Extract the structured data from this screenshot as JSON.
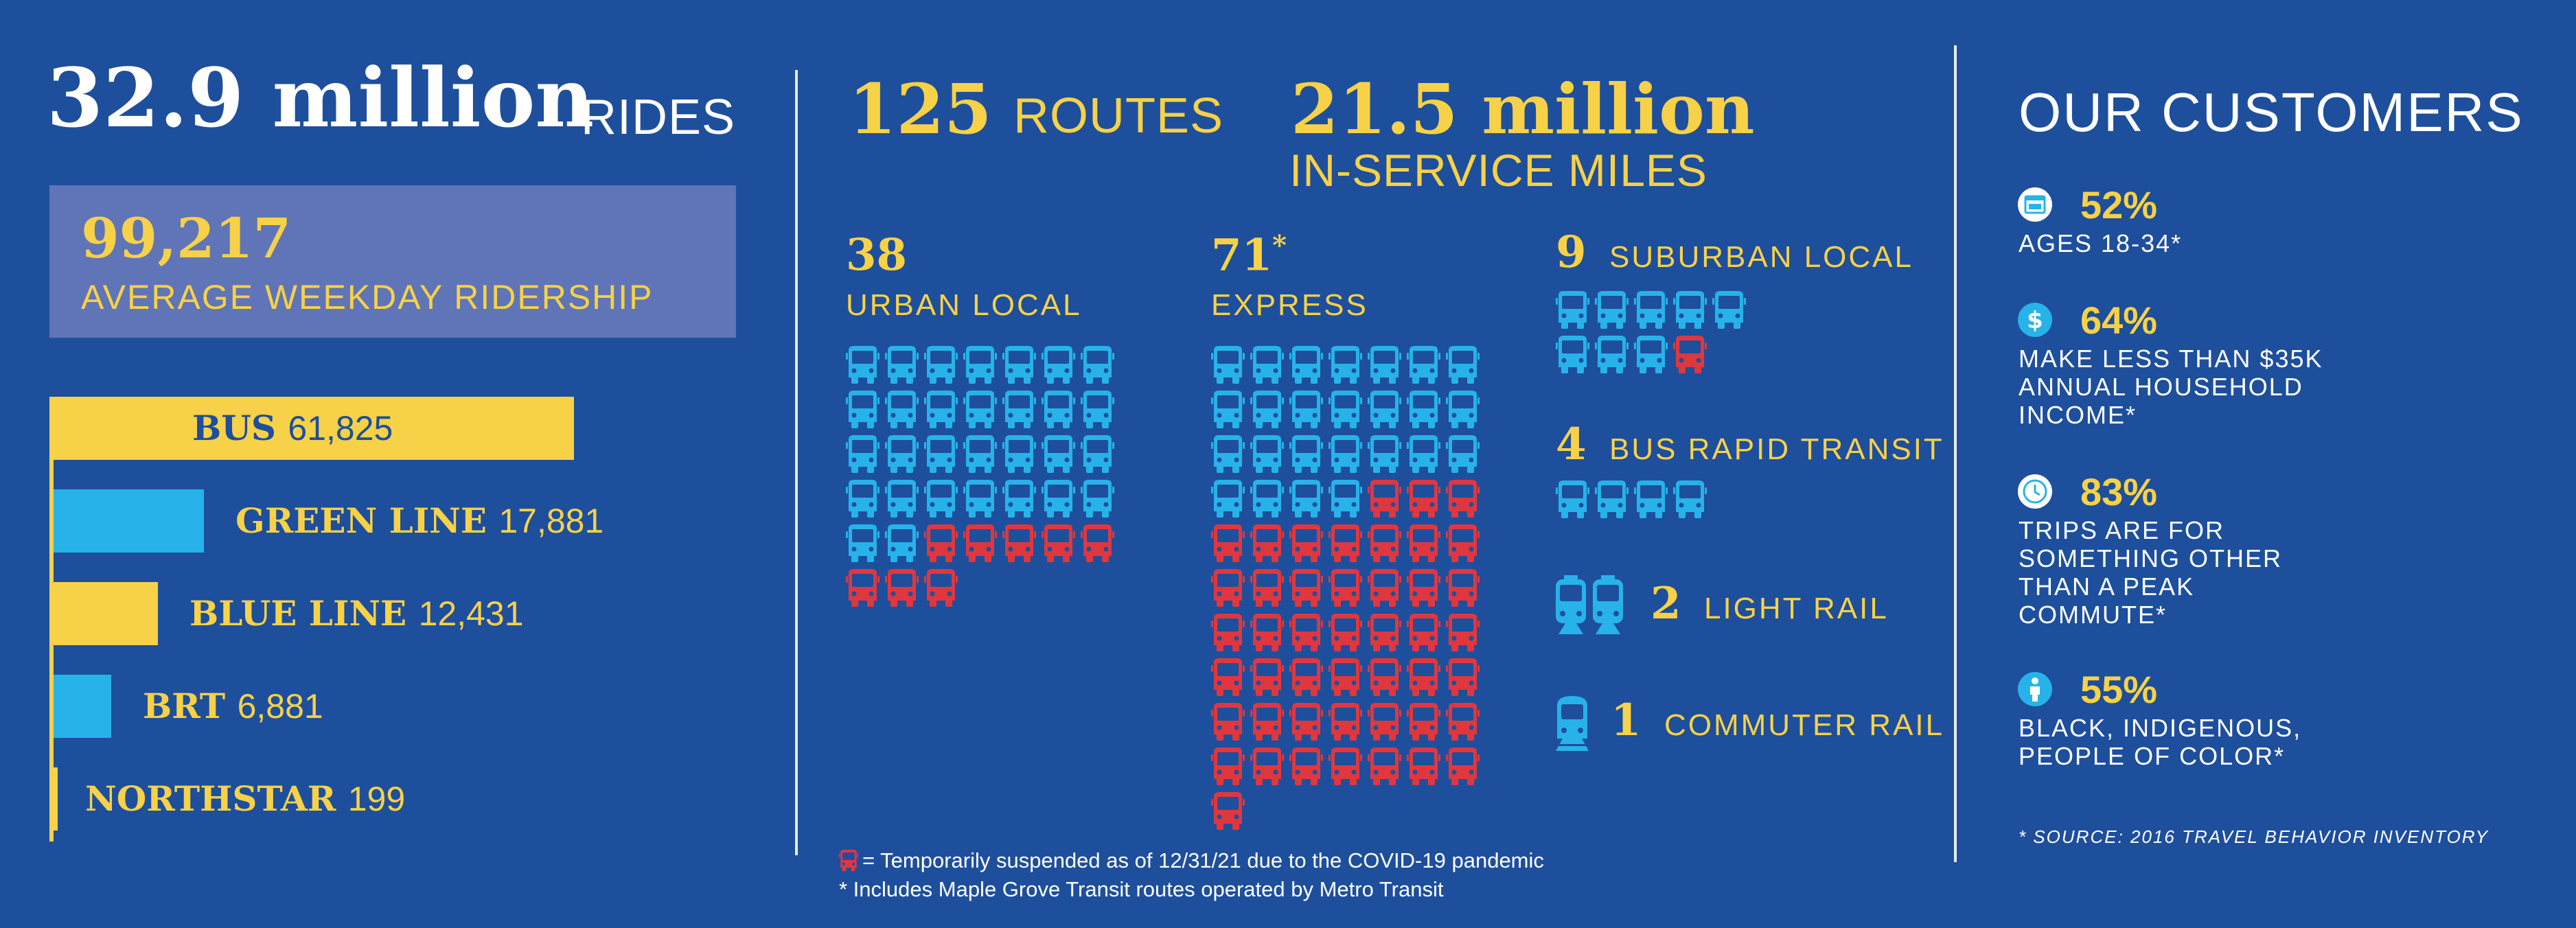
{
  "rides": {
    "value": "32.9 million",
    "label": "RIDES"
  },
  "weekday": {
    "value": "99,217",
    "label": "AVERAGE WEEKDAY RIDERSHIP"
  },
  "ridership_bars": [
    {
      "name": "BUS",
      "value": "61,825",
      "count": 61825,
      "color": "#f7d147"
    },
    {
      "name": "GREEN LINE",
      "value": "17,881",
      "count": 17881,
      "color": "#27b3ea"
    },
    {
      "name": "BLUE LINE",
      "value": "12,431",
      "count": 12431,
      "color": "#f7d147"
    },
    {
      "name": "BRT",
      "value": "6,881",
      "count": 6881,
      "color": "#27b3ea"
    },
    {
      "name": "NORTHSTAR",
      "value": "199",
      "count": 199,
      "color": "#f7d147"
    }
  ],
  "routes": {
    "value": "125",
    "label": "ROUTES"
  },
  "miles": {
    "value": "21.5 million",
    "label": "IN-SERVICE MILES"
  },
  "route_types": {
    "urban_local": {
      "value": "38",
      "label": "URBAN LOCAL",
      "total": 38,
      "suspended": 8
    },
    "express": {
      "value": "71",
      "mark": "*",
      "label": "EXPRESS",
      "total": 71,
      "suspended": 46
    },
    "suburban_local": {
      "value": "9",
      "label": "SUBURBAN LOCAL",
      "total": 9,
      "suspended": 1
    },
    "brt": {
      "value": "4",
      "label": "BUS RAPID TRANSIT",
      "total": 4,
      "suspended": 0
    },
    "light_rail": {
      "value": "2",
      "label": "LIGHT RAIL"
    },
    "commuter_rail": {
      "value": "1",
      "label": "COMMUTER RAIL"
    }
  },
  "footnotes": {
    "suspended": "= Temporarily suspended as of 12/31/21 due to the COVID-19 pandemic",
    "maple_grove": "* Includes Maple Grove Transit routes operated by Metro Transit"
  },
  "customers": {
    "title": "OUR CUSTOMERS",
    "items": [
      {
        "icon": "calendar-icon",
        "pct": "52%",
        "text": "AGES 18-34*"
      },
      {
        "icon": "dollar-icon",
        "pct": "64%",
        "text": "MAKE LESS THAN $35K ANNUAL HOUSEHOLD INCOME*"
      },
      {
        "icon": "clock-icon",
        "pct": "83%",
        "text": "TRIPS ARE FOR SOMETHING OTHER THAN A PEAK COMMUTE*"
      },
      {
        "icon": "person-icon",
        "pct": "55%",
        "text": "BLACK, INDIGENOUS, PEOPLE OF COLOR*"
      }
    ],
    "source": "* SOURCE: 2016 TRAVEL BEHAVIOR INVENTORY"
  },
  "colors": {
    "background": "#1e4f9c",
    "yellow": "#f7d147",
    "blue_bus": "#27b3ea",
    "red_bus": "#e0373e"
  }
}
